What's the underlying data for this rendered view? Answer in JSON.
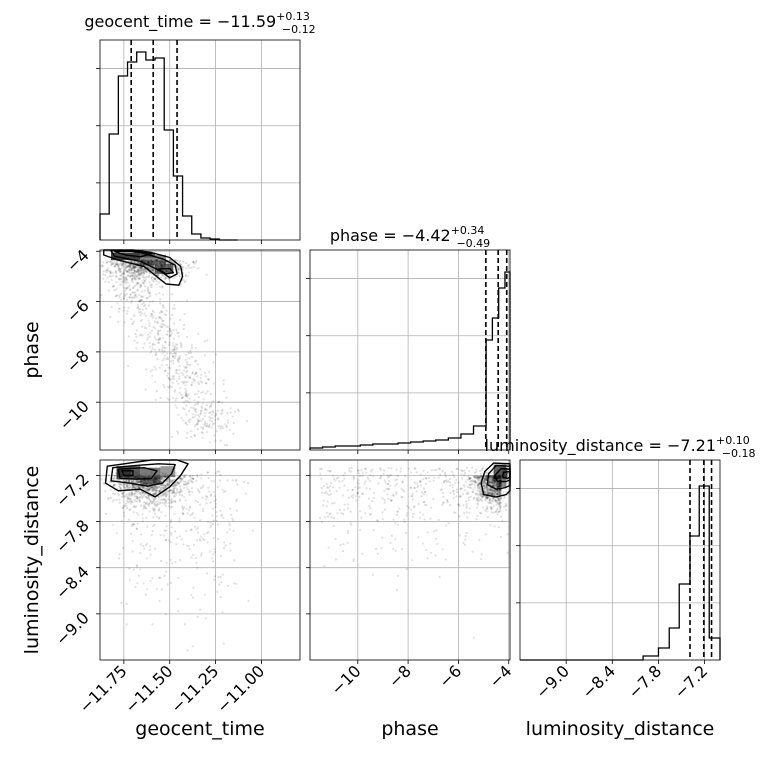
{
  "figure": {
    "type": "corner-plot"
  },
  "chart_data": {
    "type": "corner",
    "parameters": [
      {
        "name": "geocent_time",
        "axis_label": "geocent_time",
        "title": {
          "base": "geocent_time = −11.59",
          "plus": "+0.13",
          "minus": "−0.12"
        },
        "median": -11.59,
        "q16": -11.71,
        "q84": -11.46,
        "range": [
          -11.88,
          -10.79
        ],
        "ticks": [
          -11.75,
          -11.5,
          -11.25,
          -11.0
        ],
        "tick_labels": [
          "−11.75",
          "−11.50",
          "−11.25",
          "−11.00"
        ],
        "hist_edges": [
          -11.88,
          -11.83,
          -11.78,
          -11.73,
          -11.68,
          -11.63,
          -11.58,
          -11.53,
          -11.48,
          -11.43,
          -11.38,
          -11.33,
          -11.28,
          -11.23,
          -11.18,
          -11.13
        ],
        "hist_values": [
          0.13,
          0.53,
          0.82,
          0.89,
          0.94,
          0.9,
          0.91,
          0.55,
          0.32,
          0.12,
          0.03,
          0.01,
          0.005,
          0,
          0
        ]
      },
      {
        "name": "phase",
        "axis_label": "phase",
        "title": {
          "base": "phase = −4.42",
          "plus": "+0.34",
          "minus": "−0.49"
        },
        "median": -4.42,
        "q16": -4.91,
        "q84": -4.08,
        "range": [
          -11.9,
          -3.95
        ],
        "ticks": [
          -10,
          -8,
          -6,
          -4
        ],
        "tick_labels": [
          "−10",
          "−8",
          "−6",
          "−4"
        ],
        "hist_edges": [
          -11.9,
          -11.4,
          -10.9,
          -10.4,
          -9.9,
          -9.4,
          -8.9,
          -8.4,
          -7.9,
          -7.4,
          -6.9,
          -6.4,
          -5.9,
          -5.4,
          -4.9,
          -4.65,
          -4.4,
          -4.15,
          -3.95
        ],
        "hist_values": [
          0.01,
          0.015,
          0.02,
          0.02,
          0.025,
          0.03,
          0.03,
          0.035,
          0.04,
          0.045,
          0.05,
          0.06,
          0.08,
          0.12,
          0.55,
          0.66,
          0.81,
          0.89
        ]
      },
      {
        "name": "luminosity_distance",
        "axis_label": "luminosity_distance",
        "title": {
          "base": "luminosity_distance = −7.21",
          "plus": "+0.10",
          "minus": "−0.18"
        },
        "median": -7.21,
        "q16": -7.39,
        "q84": -7.11,
        "range": [
          -9.6,
          -7.0
        ],
        "ticks": [
          -9.0,
          -8.4,
          -7.8,
          -7.2
        ],
        "tick_labels": [
          "−9.0",
          "−8.4",
          "−7.8",
          "−7.2"
        ],
        "hist_edges": [
          -9.6,
          -8.0,
          -7.8,
          -7.66,
          -7.53,
          -7.39,
          -7.27,
          -7.14,
          -7.0
        ],
        "hist_values": [
          0,
          0.02,
          0.06,
          0.16,
          0.38,
          0.62,
          0.87,
          0.11
        ]
      }
    ],
    "grid": true,
    "contour_levels": [
      "0.5 sigma",
      "1 sigma",
      "1.5 sigma",
      "2 sigma"
    ]
  }
}
